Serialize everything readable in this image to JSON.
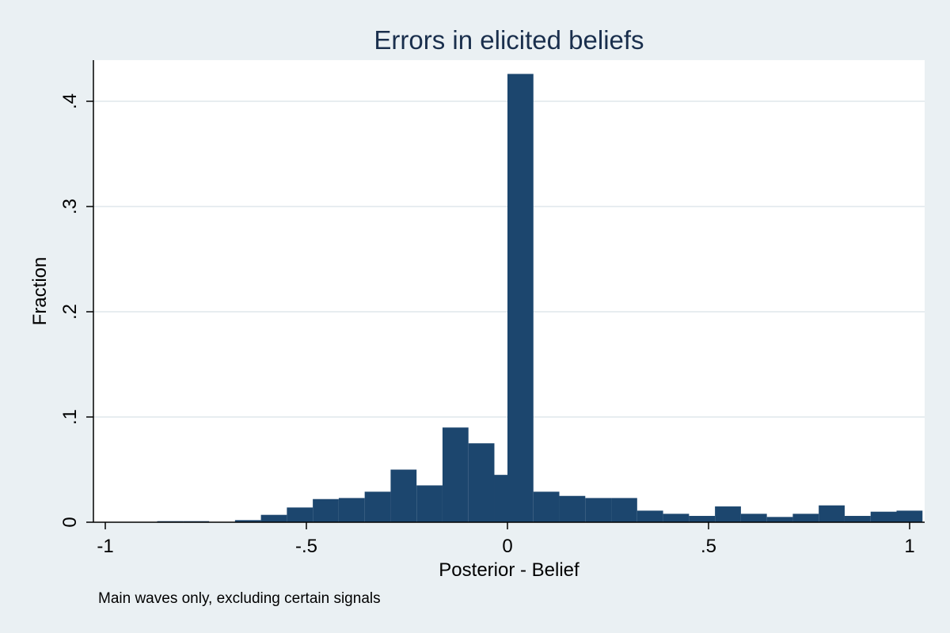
{
  "chart_data": {
    "type": "bar",
    "title": "Errors in elicited beliefs",
    "xlabel": "Posterior - Belief",
    "ylabel": "Fraction",
    "note": "Main waves only, excluding certain signals",
    "xlim": [
      -1,
      1
    ],
    "ylim": [
      0,
      0.45
    ],
    "grid": true,
    "bin_width": 0.0645,
    "x_ticks": [
      {
        "value": -1,
        "label": "-1"
      },
      {
        "value": -0.5,
        "label": "-.5"
      },
      {
        "value": 0,
        "label": "0"
      },
      {
        "value": 0.5,
        "label": ".5"
      },
      {
        "value": 1,
        "label": "1"
      }
    ],
    "y_ticks": [
      {
        "value": 0,
        "label": "0"
      },
      {
        "value": 0.1,
        "label": ".1"
      },
      {
        "value": 0.2,
        "label": ".2"
      },
      {
        "value": 0.3,
        "label": ".3"
      },
      {
        "value": 0.4,
        "label": ".4"
      }
    ],
    "bins": [
      {
        "start": -1.0,
        "value": 0.0
      },
      {
        "start": -0.9355,
        "value": 0.0
      },
      {
        "start": -0.871,
        "value": 0.001
      },
      {
        "start": -0.8065,
        "value": 0.001
      },
      {
        "start": -0.742,
        "value": 0.0
      },
      {
        "start": -0.6775,
        "value": 0.002
      },
      {
        "start": -0.613,
        "value": 0.007
      },
      {
        "start": -0.5485,
        "value": 0.014
      },
      {
        "start": -0.484,
        "value": 0.022
      },
      {
        "start": -0.4195,
        "value": 0.023
      },
      {
        "start": -0.355,
        "value": 0.029
      },
      {
        "start": -0.2905,
        "value": 0.05
      },
      {
        "start": -0.226,
        "value": 0.035
      },
      {
        "start": -0.1615,
        "value": 0.09
      },
      {
        "start": -0.097,
        "value": 0.075
      },
      {
        "start": -0.0325,
        "value": 0.045
      },
      {
        "start": 0.0,
        "value": 0.426
      },
      {
        "start": 0.0645,
        "value": 0.029
      },
      {
        "start": 0.129,
        "value": 0.025
      },
      {
        "start": 0.1935,
        "value": 0.023
      },
      {
        "start": 0.258,
        "value": 0.023
      },
      {
        "start": 0.3225,
        "value": 0.011
      },
      {
        "start": 0.387,
        "value": 0.008
      },
      {
        "start": 0.4515,
        "value": 0.006
      },
      {
        "start": 0.516,
        "value": 0.015
      },
      {
        "start": 0.5805,
        "value": 0.008
      },
      {
        "start": 0.645,
        "value": 0.005
      },
      {
        "start": 0.7095,
        "value": 0.008
      },
      {
        "start": 0.774,
        "value": 0.016
      },
      {
        "start": 0.8385,
        "value": 0.006
      },
      {
        "start": 0.903,
        "value": 0.01
      },
      {
        "start": 0.9675,
        "value": 0.011
      }
    ],
    "colors": {
      "background": "#eaf0f3",
      "plot_area": "#ffffff",
      "bar": "#1c466e",
      "gridline": "#e7edf0",
      "title": "#1a2f4d"
    }
  }
}
